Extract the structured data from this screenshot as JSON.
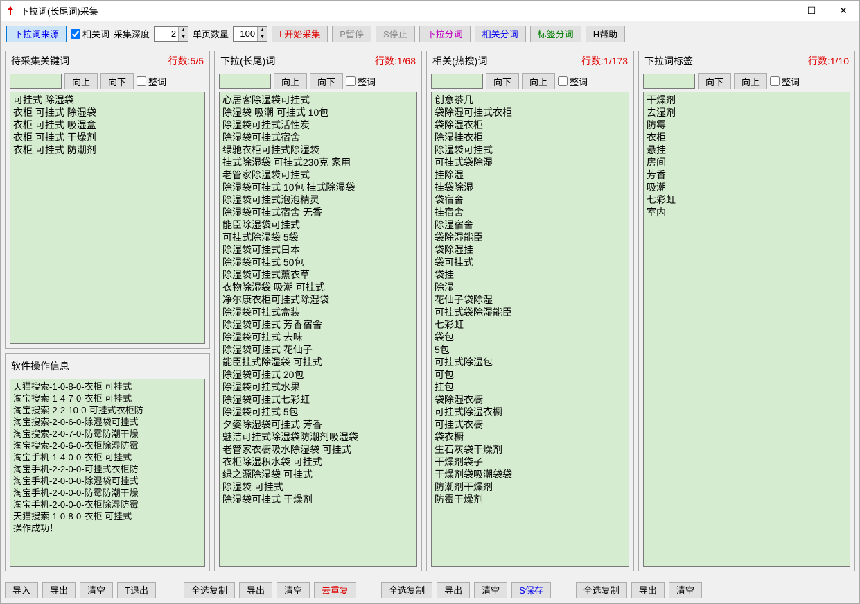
{
  "window": {
    "title": "下拉词(长尾词)采集"
  },
  "toolbar": {
    "source_btn": "下拉词来源",
    "related_cb": "相关词",
    "depth_label": "采集深度",
    "depth_value": "2",
    "page_size_label": "单页数量",
    "page_size_value": "100",
    "start": "L开始采集",
    "pause": "P暂停",
    "stop": "S停止",
    "seg_dropdown": "下拉分词",
    "seg_related": "相关分词",
    "seg_tag": "标签分词",
    "help": "H帮助"
  },
  "panels": {
    "keywords": {
      "title": "待采集关键词",
      "count": "行数:5/5",
      "up": "向上",
      "down": "向下",
      "whole": "整词",
      "items": [
        "可挂式 除湿袋",
        "衣柜  可挂式 除湿袋",
        "衣柜  可挂式 吸湿盒",
        "衣柜  可挂式 干燥剂",
        "衣柜  可挂式 防潮剂"
      ]
    },
    "log": {
      "title": "软件操作信息",
      "items": [
        "天猫搜索-1-0-8-0-衣柜  可挂式",
        "淘宝搜索-1-4-7-0-衣柜  可挂式",
        "淘宝搜索-2-2-10-0-可挂式衣柜防",
        "淘宝搜索-2-0-6-0-除湿袋可挂式",
        "淘宝搜索-2-0-7-0-防霉防潮干燥",
        "淘宝搜索-2-0-6-0-衣柜除湿防霉",
        "淘宝手机-1-4-0-0-衣柜  可挂式",
        "淘宝手机-2-2-0-0-可挂式衣柜防",
        "淘宝手机-2-0-0-0-除湿袋可挂式",
        "淘宝手机-2-0-0-0-防霉防潮干燥",
        "淘宝手机-2-0-0-0-衣柜除湿防霉",
        "天猫搜索-1-0-8-0-衣柜  可挂式",
        "操作成功！"
      ]
    },
    "dropdown": {
      "title": "下拉(长尾)词",
      "count": "行数:1/68",
      "up": "向上",
      "down": "向下",
      "whole": "整词",
      "items": [
        "心居客除湿袋可挂式",
        "除湿袋  吸潮 可挂式 10包",
        "除湿袋可挂式活性炭",
        "除湿袋可挂式宿舍",
        "绿驰衣柜可挂式除湿袋",
        "挂式除湿袋 可挂式230克 家用",
        "老管家除湿袋可挂式",
        "除湿袋可挂式 10包 挂式除湿袋",
        "除湿袋可挂式泡泡精灵",
        "除湿袋可挂式宿舍     无香",
        "能臣除湿袋可挂式",
        "可挂式除湿袋 5袋",
        "除湿袋可挂式日本",
        "除湿袋可挂式 50包",
        "除湿袋可挂式薰衣草",
        "衣物除湿袋 吸潮 可挂式",
        "净尔康衣柜可挂式除湿袋",
        "除湿袋可挂式盒装",
        "除湿袋可挂式 芳香宿舍",
        "除湿袋可挂式 去味",
        "除湿袋可挂式 花仙子",
        "能臣挂式除湿袋 可挂式",
        "除湿袋可挂式 20包",
        "除湿袋可挂式水果",
        "除湿袋可挂式七彩虹",
        "除湿袋可挂式 5包",
        "夕姿除湿袋可挂式 芳香",
        "魅洁可挂式除湿袋防潮剂吸湿袋",
        "老管家衣橱吸水除湿袋 可挂式",
        "衣柜除湿积水袋 可挂式",
        "绿之源除湿袋 可挂式",
        "除湿袋 可挂式",
        "除湿袋可挂式 干燥剂"
      ]
    },
    "related": {
      "title": "相关(热搜)词",
      "count": "行数:1/173",
      "up": "向上",
      "down": "向下",
      "whole": "整词",
      "items": [
        "创意茶几",
        "袋除湿可挂式衣柜",
        "袋除湿衣柜",
        "除湿挂衣柜",
        "除湿袋可挂式",
        "可挂式袋除湿",
        "挂除湿",
        "挂袋除湿",
        "袋宿舍",
        "挂宿舍",
        "除湿宿舍",
        "袋除湿能臣",
        "袋除湿挂",
        "袋可挂式",
        "袋挂",
        "除湿",
        "花仙子袋除湿",
        "可挂式袋除湿能臣",
        "七彩虹",
        "袋包",
        "5包",
        "可挂式除湿包",
        "可包",
        "挂包",
        "袋除湿衣橱",
        "可挂式除湿衣橱",
        "可挂式衣橱",
        "袋衣橱",
        "生石灰袋干燥剂",
        "干燥剂袋子",
        "干燥剂袋吸潮袋袋",
        "防潮剂干燥剂",
        "防霉干燥剂"
      ]
    },
    "tags": {
      "title": "下拉词标签",
      "count": "行数:1/10",
      "up": "向上",
      "down": "向下",
      "whole": "整词",
      "items": [
        "干燥剂",
        "去湿剂",
        "防霉",
        "衣柜",
        "悬挂",
        "房间",
        "芳香",
        "吸潮",
        "七彩虹",
        "室内"
      ]
    }
  },
  "footer": {
    "g1": {
      "import": "导入",
      "export": "导出",
      "clear": "清空",
      "exit": "T退出"
    },
    "g2": {
      "copy": "全选复制",
      "export": "导出",
      "clear": "清空",
      "dedup": "去重复"
    },
    "g3": {
      "copy": "全选复制",
      "export": "导出",
      "clear": "清空",
      "save": "S保存"
    },
    "g4": {
      "copy": "全选复制",
      "export": "导出",
      "clear": "清空"
    }
  },
  "colors": {
    "list_bg": "#d6ecd0",
    "red": "#e00000",
    "blue": "#0000ee",
    "magenta": "#c000c0",
    "green": "#008000"
  }
}
